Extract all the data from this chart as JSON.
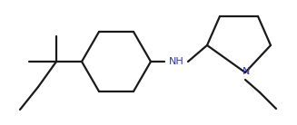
{
  "bg_color": "#ffffff",
  "line_color": "#1a1a1a",
  "line_width": 1.6,
  "NH_color": "#3333bb",
  "N_color": "#3333bb",
  "font_size": 8.0,
  "figsize": [
    3.27,
    1.38
  ],
  "dpi": 100,
  "xlim": [
    0,
    327
  ],
  "ylim": [
    0,
    138
  ]
}
